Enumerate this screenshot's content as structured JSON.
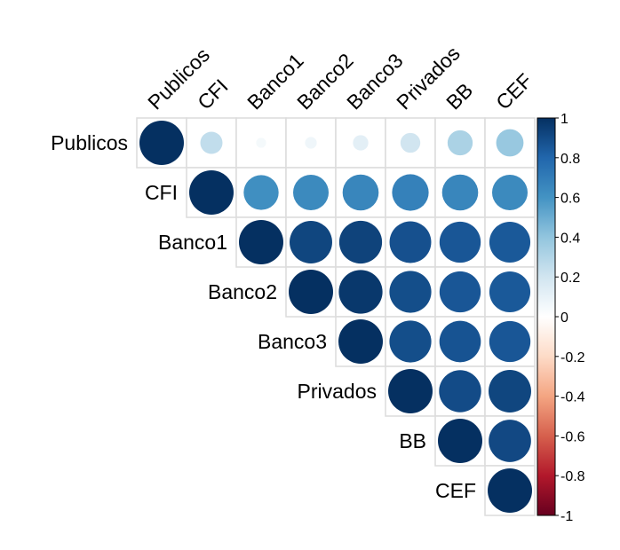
{
  "chart_data": {
    "type": "heatmap",
    "title": "",
    "variables": [
      "Publicos",
      "CFI",
      "Banco1",
      "Banco2",
      "Banco3",
      "Privados",
      "BB",
      "CEF"
    ],
    "matrix": [
      [
        1.0,
        0.25,
        0.05,
        0.07,
        0.12,
        0.2,
        0.32,
        0.38
      ],
      [
        null,
        1.0,
        0.62,
        0.64,
        0.66,
        0.68,
        0.66,
        0.64
      ],
      [
        null,
        null,
        1.0,
        0.92,
        0.93,
        0.88,
        0.86,
        0.85
      ],
      [
        null,
        null,
        null,
        1.0,
        0.97,
        0.89,
        0.86,
        0.85
      ],
      [
        null,
        null,
        null,
        null,
        1.0,
        0.89,
        0.87,
        0.86
      ],
      [
        null,
        null,
        null,
        null,
        null,
        1.0,
        0.9,
        0.92
      ],
      [
        null,
        null,
        null,
        null,
        null,
        null,
        1.0,
        0.91
      ],
      [
        null,
        null,
        null,
        null,
        null,
        null,
        null,
        1.0
      ]
    ],
    "matrix_layout": "upper",
    "color_scale": {
      "range": [
        -1,
        1
      ],
      "ticks": [
        "1",
        "0.8",
        "0.6",
        "0.4",
        "0.2",
        "0",
        "-0.2",
        "-0.4",
        "-0.6",
        "-0.8",
        "-1"
      ],
      "negative_color": "#67001F",
      "mid_color": "#FFFFFF",
      "positive_color": "#053061"
    },
    "grid": true,
    "legend_placement": "right"
  }
}
